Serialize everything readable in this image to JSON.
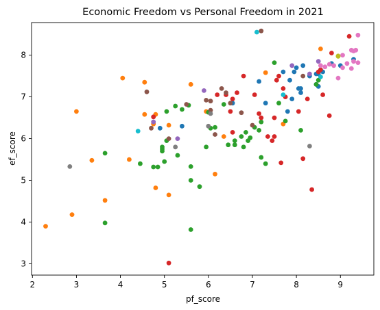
{
  "chart_data": {
    "type": "scatter",
    "title": "Economic Freedom vs Personal Freedom in 2021",
    "xlabel": "pf_score",
    "ylabel": "ef_score",
    "xlim": [
      1.98,
      9.76
    ],
    "ylim": [
      2.73,
      8.78
    ],
    "xticks": [
      2,
      3,
      4,
      5,
      6,
      7,
      8,
      9
    ],
    "yticks": [
      3,
      4,
      5,
      6,
      7,
      8
    ],
    "grid": false,
    "legend": "none",
    "series": [
      {
        "name": "blue",
        "color": "#1f77b4",
        "points": [
          [
            4.9,
            6.25
          ],
          [
            5.4,
            6.3
          ],
          [
            6.55,
            6.85
          ],
          [
            7.15,
            7.37
          ],
          [
            7.3,
            6.85
          ],
          [
            7.7,
            7.6
          ],
          [
            7.95,
            7.6
          ],
          [
            7.85,
            7.4
          ],
          [
            8.05,
            7.2
          ],
          [
            8.1,
            7.1
          ],
          [
            8.15,
            7.75
          ],
          [
            8.3,
            7.5
          ],
          [
            8.45,
            7.3
          ],
          [
            8.5,
            7.25
          ],
          [
            8.6,
            7.6
          ],
          [
            8.8,
            7.8
          ],
          [
            9.0,
            7.75
          ],
          [
            9.3,
            7.9
          ],
          [
            8.55,
            7.65
          ],
          [
            7.8,
            6.65
          ],
          [
            7.9,
            6.95
          ],
          [
            8.5,
            7.55
          ],
          [
            8.1,
            7.2
          ],
          [
            8.0,
            7.7
          ],
          [
            8.45,
            7.55
          ]
        ]
      },
      {
        "name": "orange",
        "color": "#ff7f0e",
        "points": [
          [
            2.3,
            3.9
          ],
          [
            2.9,
            4.18
          ],
          [
            3.0,
            6.65
          ],
          [
            3.35,
            5.48
          ],
          [
            3.65,
            4.52
          ],
          [
            4.05,
            7.45
          ],
          [
            4.2,
            5.5
          ],
          [
            4.55,
            6.58
          ],
          [
            4.55,
            7.35
          ],
          [
            4.75,
            6.35
          ],
          [
            4.8,
            6.58
          ],
          [
            4.8,
            4.82
          ],
          [
            5.1,
            6.32
          ],
          [
            5.1,
            4.65
          ],
          [
            5.6,
            7.3
          ],
          [
            5.95,
            6.65
          ],
          [
            6.15,
            5.15
          ],
          [
            6.35,
            6.05
          ],
          [
            7.3,
            7.58
          ],
          [
            7.7,
            6.35
          ],
          [
            8.55,
            8.15
          ]
        ]
      },
      {
        "name": "green",
        "color": "#2ca02c",
        "points": [
          [
            3.65,
            5.65
          ],
          [
            3.65,
            3.98
          ],
          [
            4.45,
            5.4
          ],
          [
            4.75,
            5.32
          ],
          [
            4.85,
            5.32
          ],
          [
            4.95,
            5.8
          ],
          [
            4.95,
            5.75
          ],
          [
            4.95,
            5.7
          ],
          [
            5.0,
            5.45
          ],
          [
            5.05,
            6.65
          ],
          [
            5.05,
            5.95
          ],
          [
            5.25,
            6.78
          ],
          [
            5.3,
            5.6
          ],
          [
            5.4,
            6.7
          ],
          [
            5.55,
            6.8
          ],
          [
            5.6,
            5.33
          ],
          [
            5.6,
            5.0
          ],
          [
            5.6,
            3.82
          ],
          [
            5.8,
            4.85
          ],
          [
            5.95,
            5.8
          ],
          [
            6.0,
            6.63
          ],
          [
            6.05,
            6.25
          ],
          [
            6.15,
            6.27
          ],
          [
            6.35,
            6.82
          ],
          [
            6.45,
            5.85
          ],
          [
            6.6,
            5.95
          ],
          [
            6.6,
            5.85
          ],
          [
            6.75,
            6.05
          ],
          [
            6.8,
            5.8
          ],
          [
            6.85,
            6.15
          ],
          [
            6.9,
            5.95
          ],
          [
            6.95,
            6.02
          ],
          [
            7.05,
            6.27
          ],
          [
            7.15,
            6.2
          ],
          [
            7.2,
            6.4
          ],
          [
            7.2,
            5.55
          ],
          [
            7.3,
            5.4
          ],
          [
            7.5,
            7.82
          ],
          [
            7.6,
            6.85
          ],
          [
            7.75,
            6.42
          ],
          [
            8.1,
            6.2
          ],
          [
            8.45,
            7.3
          ],
          [
            8.5,
            7.4
          ]
        ]
      },
      {
        "name": "red",
        "color": "#d62728",
        "points": [
          [
            4.75,
            6.52
          ],
          [
            5.1,
            3.02
          ],
          [
            6.2,
            7.05
          ],
          [
            6.4,
            7.05
          ],
          [
            6.5,
            6.65
          ],
          [
            6.55,
            6.15
          ],
          [
            6.55,
            6.95
          ],
          [
            6.65,
            7.1
          ],
          [
            6.8,
            7.5
          ],
          [
            7.05,
            7.05
          ],
          [
            7.15,
            6.6
          ],
          [
            7.2,
            6.5
          ],
          [
            7.35,
            6.05
          ],
          [
            7.45,
            5.95
          ],
          [
            7.5,
            6.05
          ],
          [
            7.5,
            6.5
          ],
          [
            7.55,
            7.4
          ],
          [
            7.6,
            7.5
          ],
          [
            7.65,
            5.42
          ],
          [
            7.7,
            7.2
          ],
          [
            7.75,
            7.0
          ],
          [
            8.05,
            6.65
          ],
          [
            8.15,
            5.52
          ],
          [
            8.25,
            6.95
          ],
          [
            8.35,
            4.78
          ],
          [
            8.5,
            7.6
          ],
          [
            8.55,
            7.65
          ],
          [
            8.6,
            7.05
          ],
          [
            8.75,
            6.55
          ],
          [
            8.8,
            8.05
          ],
          [
            9.2,
            8.45
          ]
        ]
      },
      {
        "name": "purple",
        "color": "#9467bd",
        "points": [
          [
            4.75,
            6.4
          ],
          [
            5.3,
            6.0
          ],
          [
            5.9,
            7.15
          ],
          [
            8.3,
            7.55
          ],
          [
            8.5,
            7.85
          ],
          [
            7.9,
            7.75
          ]
        ]
      },
      {
        "name": "brown",
        "color": "#8c564b",
        "points": [
          [
            4.6,
            7.12
          ],
          [
            4.7,
            6.25
          ],
          [
            5.1,
            6.0
          ],
          [
            5.5,
            6.82
          ],
          [
            5.95,
            6.92
          ],
          [
            6.05,
            6.9
          ],
          [
            6.05,
            6.68
          ],
          [
            6.15,
            6.1
          ],
          [
            6.3,
            7.2
          ],
          [
            6.4,
            7.1
          ],
          [
            6.5,
            6.85
          ],
          [
            6.75,
            6.62
          ],
          [
            7.0,
            6.32
          ],
          [
            7.2,
            8.58
          ],
          [
            8.15,
            7.5
          ]
        ]
      },
      {
        "name": "pink",
        "color": "#e377c2",
        "points": [
          [
            8.55,
            7.75
          ],
          [
            8.75,
            7.78
          ],
          [
            8.85,
            7.75
          ],
          [
            8.95,
            7.45
          ],
          [
            9.05,
            7.7
          ],
          [
            9.15,
            7.8
          ],
          [
            9.25,
            7.68
          ],
          [
            9.25,
            8.12
          ],
          [
            9.3,
            7.85
          ],
          [
            9.3,
            8.1
          ],
          [
            9.35,
            8.12
          ],
          [
            9.4,
            7.82
          ],
          [
            9.4,
            8.48
          ],
          [
            8.65,
            7.72
          ],
          [
            9.05,
            8.0
          ]
        ]
      },
      {
        "name": "gray",
        "color": "#7f7f7f",
        "points": [
          [
            2.85,
            5.33
          ],
          [
            5.25,
            5.8
          ],
          [
            6.0,
            6.3
          ],
          [
            6.05,
            6.6
          ],
          [
            8.3,
            5.82
          ]
        ]
      },
      {
        "name": "olive",
        "color": "#bcbd22",
        "points": [
          [
            8.95,
            7.98
          ],
          [
            8.95,
            7.97
          ]
        ]
      },
      {
        "name": "cyan",
        "color": "#17becf",
        "points": [
          [
            4.4,
            6.18
          ],
          [
            7.1,
            8.55
          ],
          [
            7.7,
            7.05
          ],
          [
            8.55,
            7.48
          ]
        ]
      }
    ]
  }
}
